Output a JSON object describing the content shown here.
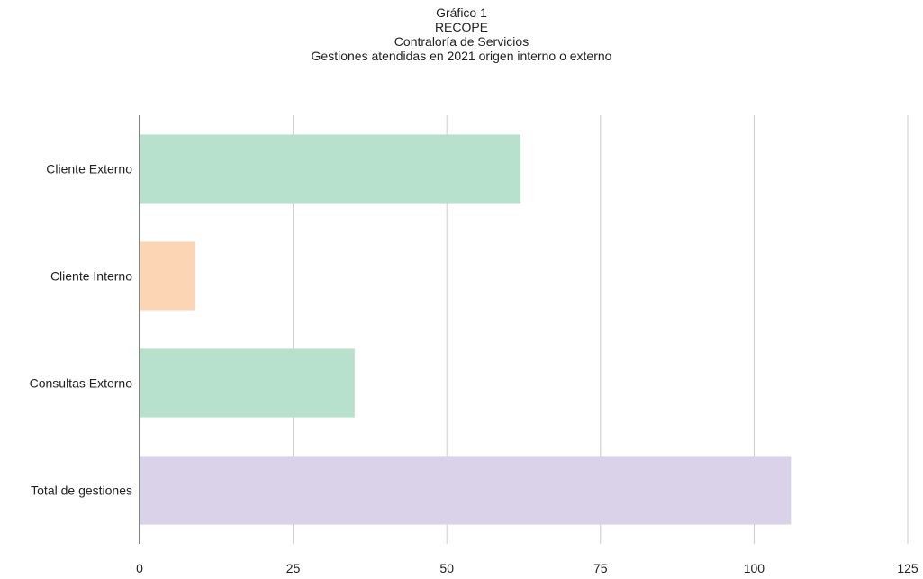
{
  "chart_data": {
    "type": "bar",
    "orientation": "horizontal",
    "title_lines": [
      "Gráfico 1",
      "RECOPE",
      "Contraloría de Servicios",
      "Gestiones atendidas en 2021 origen interno o externo"
    ],
    "categories": [
      "Cliente Externo",
      "Cliente Interno",
      "Consultas Externo",
      "Total de gestiones"
    ],
    "values": [
      62,
      9,
      35,
      106
    ],
    "bar_colors": [
      "#b7e1cd",
      "#fcd5b5",
      "#b7e1cd",
      "#d9d2e9"
    ],
    "xlim": [
      0,
      125
    ],
    "xticks": [
      0,
      25,
      50,
      75,
      100,
      125
    ],
    "xlabel": "",
    "ylabel": "",
    "grid": true,
    "legend": "none"
  }
}
